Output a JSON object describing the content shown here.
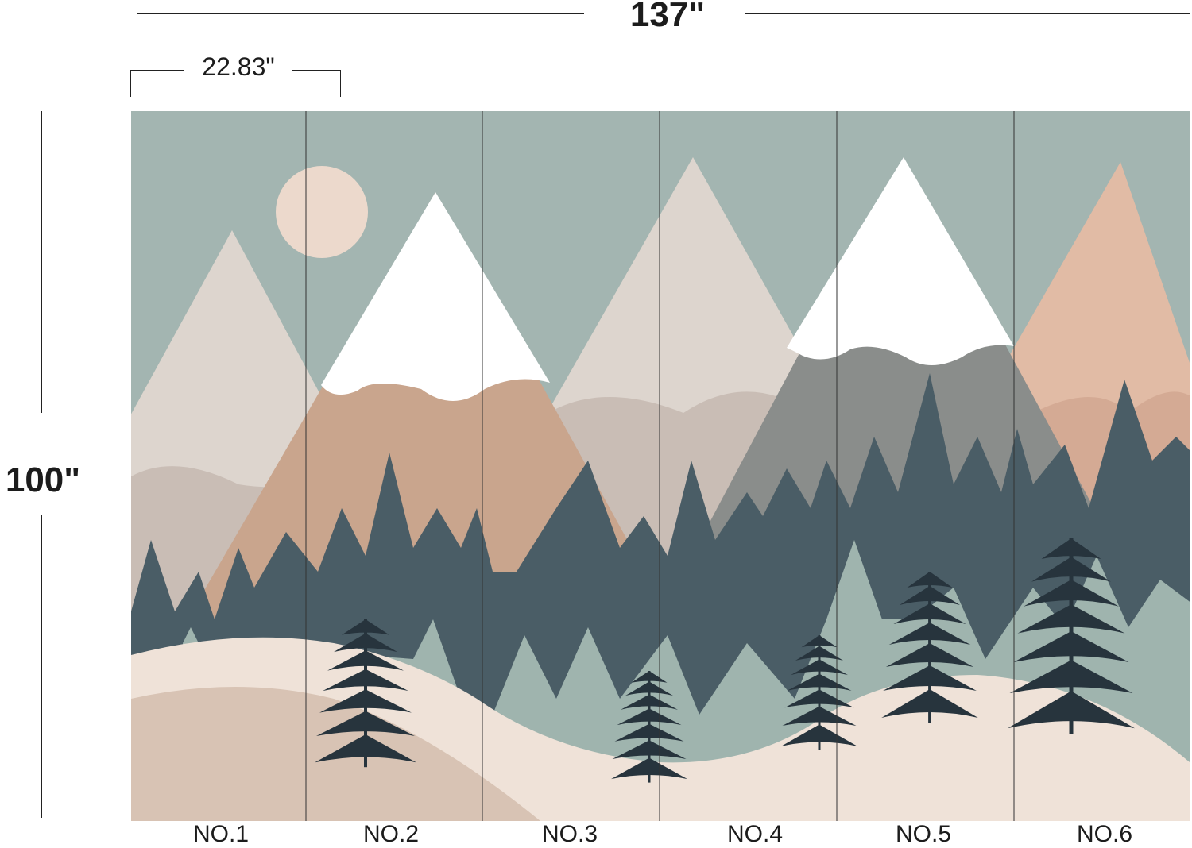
{
  "dimensions": {
    "width": "137\"",
    "height": "100\"",
    "panel_width": "22.83\""
  },
  "panels": [
    {
      "label": "NO.1"
    },
    {
      "label": "NO.2"
    },
    {
      "label": "NO.3"
    },
    {
      "label": "NO.4"
    },
    {
      "label": "NO.5"
    },
    {
      "label": "NO.6"
    }
  ],
  "colors": {
    "sky": "#a3b5b1",
    "light_mountain": "#ddd5ce",
    "brown_mountain": "#c9a58d",
    "gray_mountain": "#8a8d8b",
    "peach_mountain": "#e1bba5",
    "dark_trees": "#4a5d66",
    "light_trees": "#9fb4ae",
    "hill": "#efe2d8",
    "hill_dark": "#d8c3b4",
    "sun": "#ecd9cc",
    "pine": "#27343d"
  }
}
